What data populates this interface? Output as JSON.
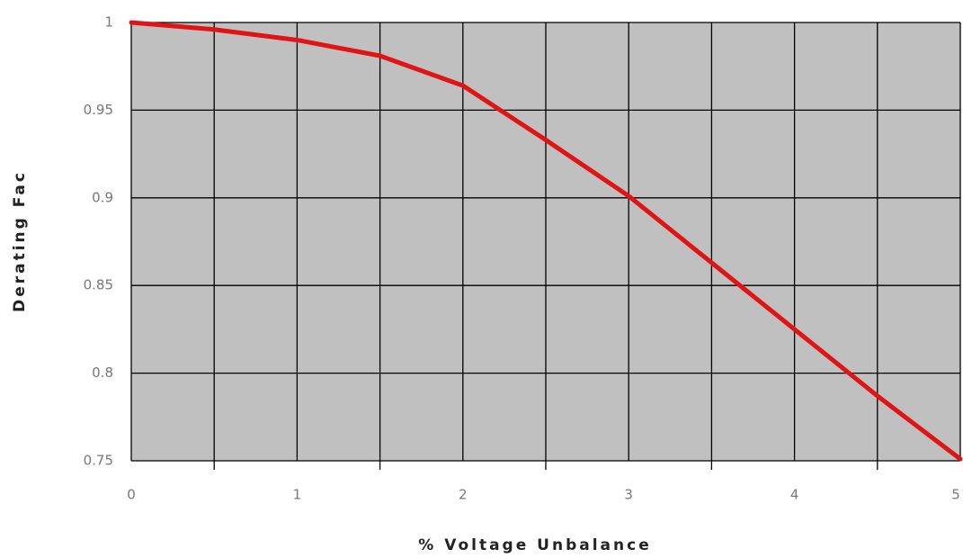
{
  "chart_data": {
    "type": "line",
    "x_label": "% Voltage Unbalance",
    "y_label": "Derating Fac",
    "x": [
      0,
      0.5,
      1,
      1.5,
      2,
      2.5,
      3,
      3.5,
      4,
      4.5,
      5
    ],
    "series": [
      {
        "color": "#e01414",
        "values": [
          1.0,
          0.996,
          0.99,
          0.981,
          0.964,
          0.933,
          0.901,
          0.863,
          0.825,
          0.787,
          0.751
        ]
      }
    ],
    "xlim": [
      0,
      5
    ],
    "xticks": [
      0,
      1,
      2,
      3,
      4,
      5
    ],
    "xminor_ticks": [
      0.5,
      1.5,
      2.5,
      3.5,
      4.5
    ],
    "ylim": [
      0.75,
      1
    ],
    "yticks": [
      0.75,
      0.8,
      0.85,
      0.9,
      0.95,
      1
    ],
    "grid": true,
    "background": "#c0c0c0"
  }
}
